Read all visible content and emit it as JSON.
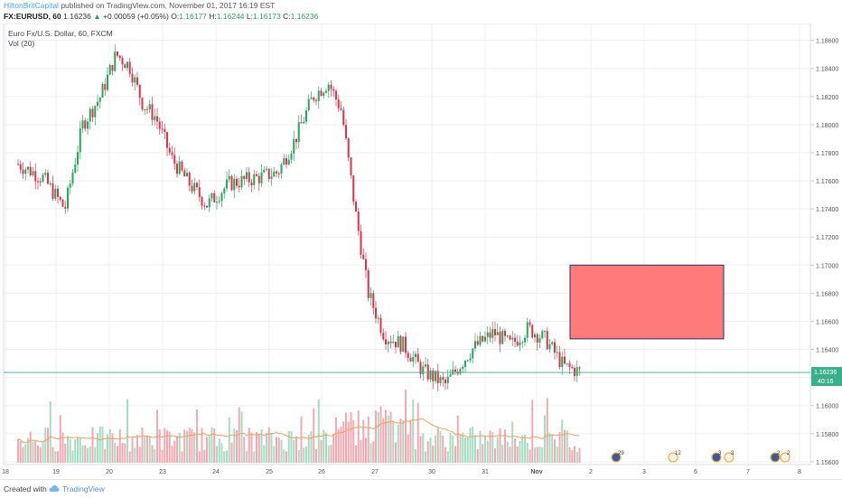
{
  "header": {
    "author": "HiltonBritCapital",
    "published": " published on TradingView.com, November 01, 2017 16:19 EST",
    "symbol": "FX:EURUSD, 60",
    "last": "1.16236",
    "change": "+0.00059 (+0.05%)",
    "o_label": "O:",
    "o_value": "1.16177",
    "h_label": "H:",
    "h_value": "1.16244",
    "l_label": "L:",
    "l_value": "1.16173",
    "c_label": "C:",
    "c_value": "1.16236"
  },
  "legend": {
    "series": "Euro Fx/U.S. Dollar, 60, FXCM",
    "indicator": "Vol (20)"
  },
  "footer": {
    "created_with": "Created with",
    "brand": "TradingView"
  },
  "colors": {
    "up": "#26a65b",
    "down": "#e0314b",
    "vol_up": "#a8dcc0",
    "vol_down": "#f4a8b2",
    "vol_ma": "#f0a060",
    "box_fill": "#ff7b7b",
    "box_stroke": "#2a2a70",
    "last_price": "#3ab08a"
  },
  "chart_data": {
    "type": "candlestick",
    "symbol": "FX:EURUSD",
    "timeframe": "60",
    "y_ticks": [
      "1.18600",
      "1.18400",
      "1.18200",
      "1.18000",
      "1.17800",
      "1.17600",
      "1.17400",
      "1.17200",
      "1.17000",
      "1.16800",
      "1.16600",
      "1.16400",
      "1.16200",
      "1.16000",
      "1.15800",
      "1.15600"
    ],
    "ylim": [
      1.1558,
      1.1872
    ],
    "x_ticks": [
      "18",
      "19",
      "20",
      "23",
      "24",
      "25",
      "26",
      "27",
      "30",
      "31",
      "Nov",
      "2",
      "3",
      "6",
      "7",
      "8"
    ],
    "last_price_label": "1.16236",
    "countdown_label": "40:16",
    "anchors": [
      {
        "tick": "18",
        "price": 1.1772
      },
      {
        "tick": "18",
        "price": 1.1762
      },
      {
        "tick": "19",
        "price": 1.174
      },
      {
        "tick": "19",
        "price": 1.18
      },
      {
        "tick": "19",
        "price": 1.182
      },
      {
        "tick": "20",
        "price": 1.185
      },
      {
        "tick": "20",
        "price": 1.1842
      },
      {
        "tick": "20",
        "price": 1.1815
      },
      {
        "tick": "20",
        "price": 1.1805
      },
      {
        "tick": "23",
        "price": 1.1776
      },
      {
        "tick": "23",
        "price": 1.1758
      },
      {
        "tick": "23",
        "price": 1.1743
      },
      {
        "tick": "24",
        "price": 1.1758
      },
      {
        "tick": "24",
        "price": 1.1762
      },
      {
        "tick": "25",
        "price": 1.1766
      },
      {
        "tick": "25",
        "price": 1.179
      },
      {
        "tick": "25",
        "price": 1.182
      },
      {
        "tick": "26",
        "price": 1.183
      },
      {
        "tick": "26",
        "price": 1.181
      },
      {
        "tick": "26",
        "price": 1.174
      },
      {
        "tick": "26",
        "price": 1.168
      },
      {
        "tick": "27",
        "price": 1.165
      },
      {
        "tick": "27",
        "price": 1.1643
      },
      {
        "tick": "27",
        "price": 1.1625
      },
      {
        "tick": "30",
        "price": 1.1615
      },
      {
        "tick": "30",
        "price": 1.164
      },
      {
        "tick": "31",
        "price": 1.1652
      },
      {
        "tick": "31",
        "price": 1.1643
      },
      {
        "tick": "31",
        "price": 1.1655
      },
      {
        "tick": "Nov",
        "price": 1.1647
      },
      {
        "tick": "Nov",
        "price": 1.1628
      },
      {
        "tick": "Nov",
        "price": 1.16236
      }
    ],
    "shape": {
      "type": "rectangle",
      "x_from": "Nov",
      "x_to": "6",
      "price_top": 1.17,
      "price_bottom": 1.16475
    },
    "volume": {
      "indicator": "Vol (20)"
    },
    "event_flags": [
      "29",
      "12",
      "3",
      "3",
      "2",
      "2"
    ]
  }
}
